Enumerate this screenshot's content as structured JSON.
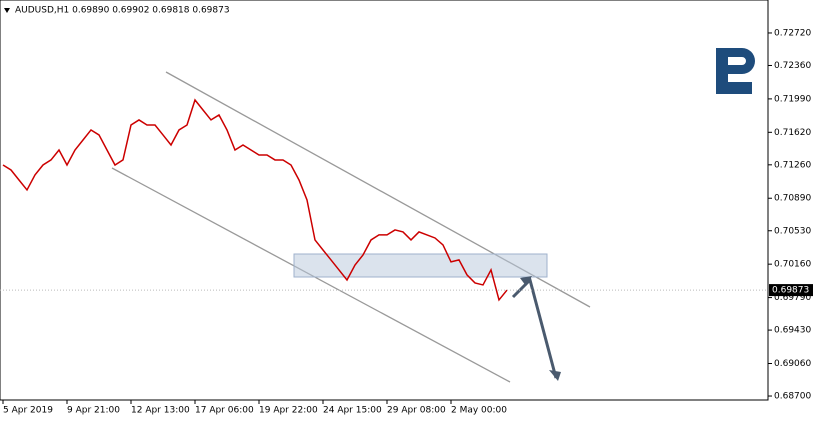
{
  "chart_data": {
    "type": "line",
    "title": "AUDUSD,H1 0.69890 0.69902 0.69818 0.69873",
    "categories": [
      "5 Apr 2019",
      null,
      null,
      null,
      null,
      null,
      null,
      null,
      "9 Apr 21:00",
      null,
      null,
      null,
      null,
      null,
      null,
      null,
      "12 Apr 13:00",
      null,
      null,
      null,
      null,
      null,
      null,
      null,
      "17 Apr 06:00",
      null,
      null,
      null,
      null,
      null,
      null,
      null,
      "19 Apr 22:00",
      null,
      null,
      null,
      null,
      null,
      null,
      null,
      "24 Apr 15:00",
      null,
      null,
      null,
      null,
      null,
      null,
      null,
      "29 Apr 08:00",
      null,
      null,
      null,
      null,
      null,
      null,
      null,
      "2 May 00:00",
      null,
      null,
      null,
      null,
      null,
      null,
      null
    ],
    "values": [
      0.71258,
      0.71203,
      0.71092,
      0.70982,
      0.71148,
      0.71258,
      0.71314,
      0.71424,
      0.71258,
      0.71424,
      0.71535,
      0.71646,
      0.71591,
      0.71424,
      0.71258,
      0.71314,
      0.71701,
      0.71757,
      0.71701,
      0.71701,
      0.71591,
      0.7148,
      0.71646,
      0.71701,
      0.71978,
      0.71867,
      0.71757,
      0.71812,
      0.71646,
      0.71424,
      0.7148,
      0.71424,
      0.71369,
      0.71369,
      0.71314,
      0.71314,
      0.71258,
      0.71092,
      0.70871,
      0.70428,
      0.70317,
      0.70207,
      0.70096,
      0.69985,
      0.70151,
      0.70262,
      0.70428,
      0.70484,
      0.70484,
      0.70539,
      0.70517,
      0.70428,
      0.70517,
      0.70484,
      0.7045,
      0.70373,
      0.70185,
      0.70207,
      0.70041,
      0.69952,
      0.6993,
      0.70096,
      0.69764,
      0.69873
    ],
    "color": "#cc0000",
    "last_price": 0.69873,
    "ylim": [
      0.68656,
      0.73085
    ],
    "yticks": [
      {
        "value": 0.7272,
        "label": "0.72720"
      },
      {
        "value": 0.7236,
        "label": "0.72360"
      },
      {
        "value": 0.7199,
        "label": "0.71990"
      },
      {
        "value": 0.7162,
        "label": "0.71620"
      },
      {
        "value": 0.7126,
        "label": "0.71260"
      },
      {
        "value": 0.7089,
        "label": "0.70890"
      },
      {
        "value": 0.7053,
        "label": "0.70530"
      },
      {
        "value": 0.7016,
        "label": "0.70160"
      },
      {
        "value": 0.6979,
        "label": "0.69790"
      },
      {
        "value": 0.6943,
        "label": "0.69430"
      },
      {
        "value": 0.6906,
        "label": "0.69060"
      },
      {
        "value": 0.687,
        "label": "0.68700"
      }
    ]
  }
}
